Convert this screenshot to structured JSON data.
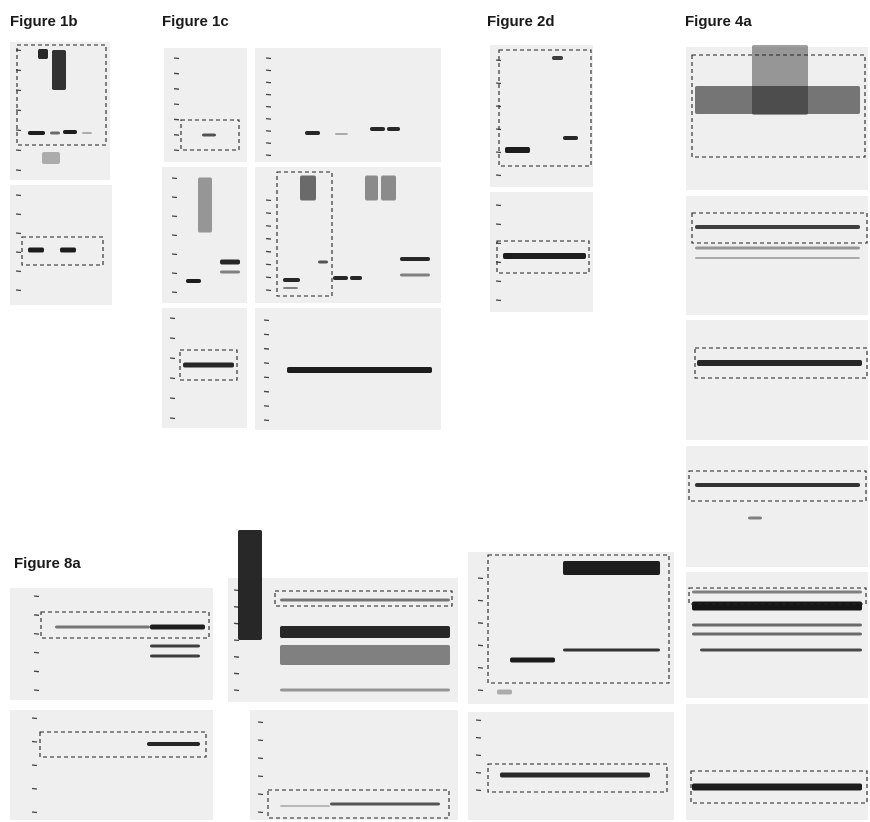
{
  "labels": [
    "Figure 1b",
    "Figure 1c",
    "Figure 2d",
    "Figure 4a",
    "Figure 8a"
  ]
}
